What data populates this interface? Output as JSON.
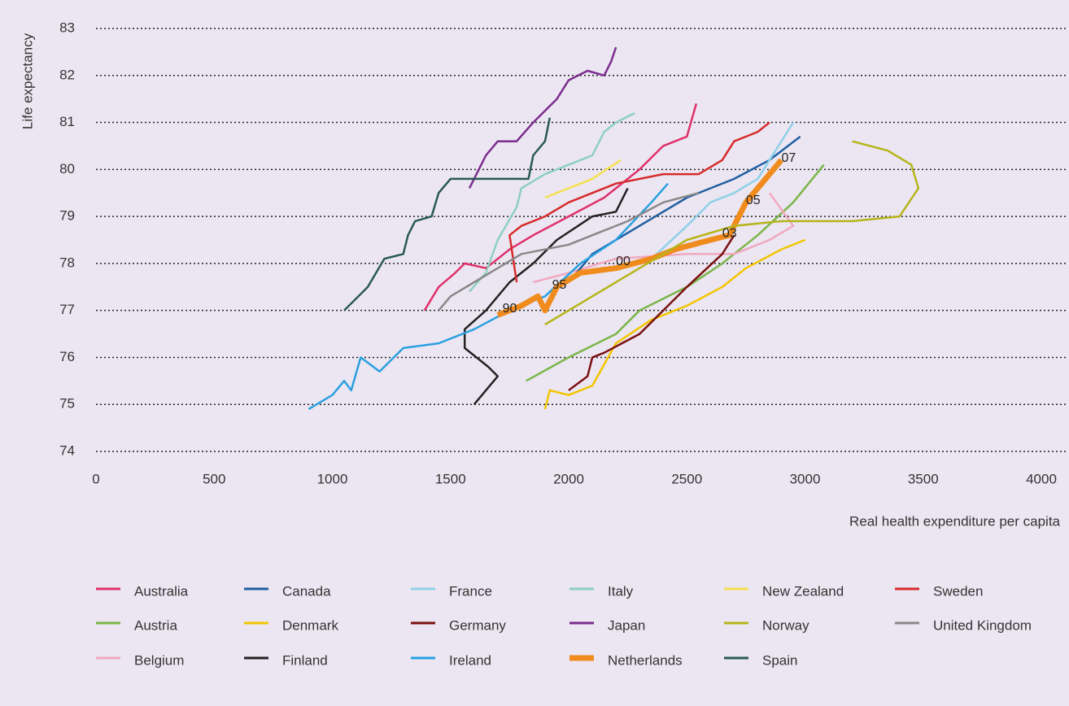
{
  "chart_data": {
    "type": "line",
    "x_label": "Real health expenditure per capita",
    "y_label": "Life expectancy",
    "xlim": [
      0,
      4000
    ],
    "xticks": [
      0,
      500,
      1000,
      1500,
      2000,
      2500,
      3000,
      3500,
      4000
    ],
    "ylim": [
      74,
      83
    ],
    "yticks": [
      74,
      75,
      76,
      77,
      78,
      79,
      80,
      81,
      82,
      83
    ],
    "grid": true,
    "series": [
      {
        "name": "Australia",
        "color": "#e0306a",
        "x": [
          1390,
          1450,
          1520,
          1560,
          1650,
          1750,
          1850,
          2000,
          2150,
          2300,
          2400,
          2500,
          2540
        ],
        "values": [
          77.0,
          77.5,
          77.8,
          78.0,
          77.9,
          78.3,
          78.6,
          79.0,
          79.4,
          80.0,
          80.5,
          80.7,
          81.4
        ]
      },
      {
        "name": "Austria",
        "color": "#7ab648",
        "x": [
          1820,
          2000,
          2200,
          2300,
          2500,
          2650,
          2800,
          2950,
          3080
        ],
        "values": [
          75.5,
          76.0,
          76.5,
          77.0,
          77.5,
          78.0,
          78.6,
          79.3,
          80.1
        ]
      },
      {
        "name": "Belgium",
        "color": "#f0a8c0",
        "x": [
          1850,
          2000,
          2200,
          2500,
          2700,
          2850,
          2950,
          2850
        ],
        "values": [
          77.6,
          77.8,
          78.1,
          78.2,
          78.2,
          78.5,
          78.8,
          79.5
        ]
      },
      {
        "name": "Canada",
        "color": "#1f5fa0",
        "x": [
          2000,
          2100,
          2300,
          2500,
          2700,
          2850,
          2980
        ],
        "values": [
          77.6,
          78.2,
          78.8,
          79.4,
          79.8,
          80.2,
          80.7
        ]
      },
      {
        "name": "Denmark",
        "color": "#f2c500",
        "x": [
          1900,
          1920,
          2000,
          2100,
          2200,
          2350,
          2500,
          2650,
          2750,
          2900,
          3000
        ],
        "values": [
          74.9,
          75.3,
          75.2,
          75.4,
          76.3,
          76.8,
          77.1,
          77.5,
          77.9,
          78.3,
          78.5
        ]
      },
      {
        "name": "Finland",
        "color": "#222222",
        "x": [
          1600,
          1700,
          1660,
          1560,
          1560,
          1650,
          1750,
          1850,
          1950,
          2100,
          2200,
          2250
        ],
        "values": [
          75.0,
          75.6,
          75.8,
          76.2,
          76.6,
          77.0,
          77.6,
          78.0,
          78.5,
          79.0,
          79.1,
          79.6
        ]
      },
      {
        "name": "France",
        "color": "#8fd0e8",
        "x": [
          2330,
          2500,
          2600,
          2700,
          2800,
          2850,
          2950
        ],
        "values": [
          78.0,
          78.8,
          79.3,
          79.5,
          79.8,
          80.2,
          81.0
        ]
      },
      {
        "name": "Germany",
        "color": "#7a1010",
        "x": [
          2000,
          2080,
          2100,
          2150,
          2300,
          2400,
          2500,
          2650,
          2700
        ],
        "values": [
          75.3,
          75.6,
          76.0,
          76.1,
          76.5,
          77.0,
          77.5,
          78.2,
          78.6
        ]
      },
      {
        "name": "Ireland",
        "color": "#2aa0e0",
        "x": [
          900,
          1000,
          1050,
          1080,
          1120,
          1200,
          1300,
          1450,
          1600,
          1750,
          1900,
          2050,
          2200,
          2350,
          2420
        ],
        "values": [
          74.9,
          75.2,
          75.5,
          75.3,
          76.0,
          75.7,
          76.2,
          76.3,
          76.6,
          77.0,
          77.3,
          78.0,
          78.5,
          79.3,
          79.7
        ]
      },
      {
        "name": "Italy",
        "color": "#8ecfc0",
        "x": [
          1580,
          1650,
          1700,
          1780,
          1800,
          1900,
          2000,
          2050,
          2100,
          2150,
          2200,
          2280
        ],
        "values": [
          77.4,
          77.8,
          78.5,
          79.2,
          79.6,
          79.9,
          80.1,
          80.2,
          80.3,
          80.8,
          81.0,
          81.2
        ]
      },
      {
        "name": "Japan",
        "color": "#7b2d8e",
        "x": [
          1580,
          1650,
          1700,
          1780,
          1850,
          1950,
          2000,
          2080,
          2150,
          2180,
          2200
        ],
        "values": [
          79.6,
          80.3,
          80.6,
          80.6,
          81.0,
          81.5,
          81.9,
          82.1,
          82.0,
          82.3,
          82.6
        ]
      },
      {
        "name": "Netherlands",
        "color": "#f08c1e",
        "width": 7,
        "x": [
          1700,
          1800,
          1870,
          1900,
          1950,
          2050,
          2200,
          2350,
          2450,
          2600,
          2680,
          2750,
          2850,
          2900
        ],
        "values": [
          76.9,
          77.1,
          77.3,
          77.0,
          77.5,
          77.8,
          77.9,
          78.1,
          78.3,
          78.5,
          78.6,
          79.3,
          79.9,
          80.2
        ]
      },
      {
        "name": "New Zealand",
        "color": "#f5e050",
        "x": [
          1900,
          2000,
          2100,
          2220
        ],
        "values": [
          79.4,
          79.6,
          79.8,
          80.2
        ]
      },
      {
        "name": "Norway",
        "color": "#b5b51a",
        "x": [
          1900,
          2100,
          2300,
          2500,
          2700,
          2900,
          3200,
          3400,
          3480,
          3450,
          3350,
          3200
        ],
        "values": [
          76.7,
          77.3,
          77.9,
          78.5,
          78.8,
          78.9,
          78.9,
          79.0,
          79.6,
          80.1,
          80.4,
          80.6
        ]
      },
      {
        "name": "Spain",
        "color": "#2a5a55",
        "x": [
          1050,
          1150,
          1220,
          1300,
          1320,
          1350,
          1420,
          1450,
          1500,
          1600,
          1750,
          1830,
          1850,
          1900,
          1920
        ],
        "values": [
          77.0,
          77.5,
          78.1,
          78.2,
          78.6,
          78.9,
          79.0,
          79.5,
          79.8,
          79.8,
          79.8,
          79.8,
          80.3,
          80.6,
          81.1
        ]
      },
      {
        "name": "Sweden",
        "color": "#d62b2b",
        "x": [
          1780,
          1750,
          1800,
          1900,
          2000,
          2200,
          2400,
          2550,
          2650,
          2700,
          2800,
          2850
        ],
        "values": [
          77.6,
          78.6,
          78.8,
          79.0,
          79.3,
          79.7,
          79.9,
          79.9,
          80.2,
          80.6,
          80.8,
          81.0
        ]
      },
      {
        "name": "United Kingdom",
        "color": "#888888",
        "x": [
          1450,
          1500,
          1600,
          1700,
          1800,
          2000,
          2100,
          2250,
          2400,
          2550
        ],
        "values": [
          77.0,
          77.3,
          77.6,
          77.9,
          78.2,
          78.4,
          78.6,
          78.9,
          79.3,
          79.5
        ]
      }
    ],
    "annotations": [
      {
        "text": "90",
        "x": 1720,
        "y": 77.0
      },
      {
        "text": "95",
        "x": 1930,
        "y": 77.5
      },
      {
        "text": "00",
        "x": 2200,
        "y": 78.0
      },
      {
        "text": "03",
        "x": 2650,
        "y": 78.6
      },
      {
        "text": "05",
        "x": 2750,
        "y": 79.3
      },
      {
        "text": "07",
        "x": 2900,
        "y": 80.2
      }
    ]
  }
}
